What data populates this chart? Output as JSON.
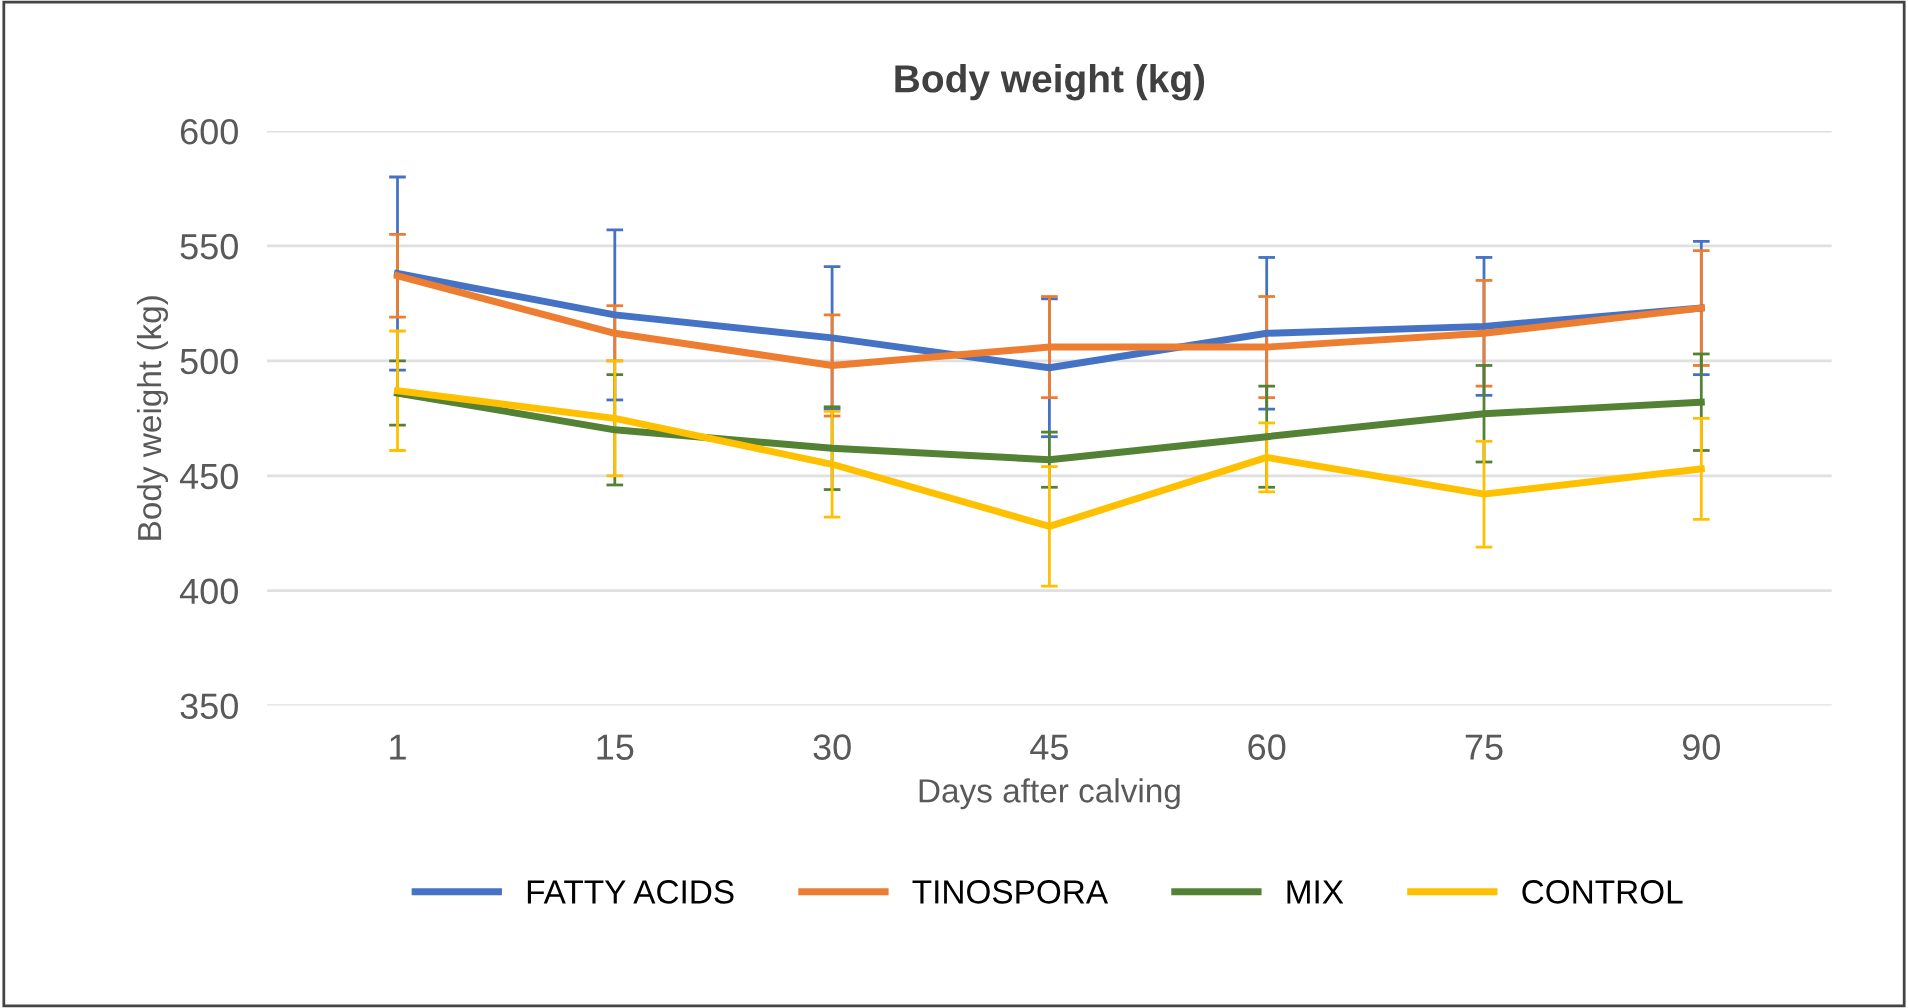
{
  "chart_data": {
    "type": "line",
    "title": "Body weight (kg)",
    "xlabel": "Days after calving",
    "ylabel": "Body weight (kg)",
    "categories": [
      "1",
      "15",
      "30",
      "45",
      "60",
      "75",
      "90"
    ],
    "series": [
      {
        "name": "FATTY ACIDS",
        "color": "#4472c4",
        "values": [
          538,
          520,
          510,
          497,
          512,
          515,
          523
        ],
        "errors": [
          42,
          37,
          31,
          30,
          33,
          30,
          29
        ]
      },
      {
        "name": "TINOSPORA",
        "color": "#ed7d31",
        "values": [
          537,
          512,
          498,
          506,
          506,
          512,
          523
        ],
        "errors": [
          18,
          12,
          22,
          22,
          22,
          23,
          25
        ]
      },
      {
        "name": "MIX",
        "color": "#548235",
        "values": [
          486,
          470,
          462,
          457,
          467,
          477,
          482
        ],
        "errors": [
          14,
          24,
          18,
          12,
          22,
          21,
          21
        ]
      },
      {
        "name": "CONTROL",
        "color": "#ffc000",
        "values": [
          487,
          475,
          455,
          428,
          458,
          442,
          453
        ],
        "errors": [
          26,
          25,
          23,
          26,
          15,
          23,
          22
        ]
      }
    ],
    "ylim": [
      350,
      600
    ],
    "yticks": [
      350,
      400,
      450,
      500,
      550,
      600
    ],
    "grid": "y",
    "legend": "bottom",
    "marker": "none",
    "line_style": "solid"
  }
}
